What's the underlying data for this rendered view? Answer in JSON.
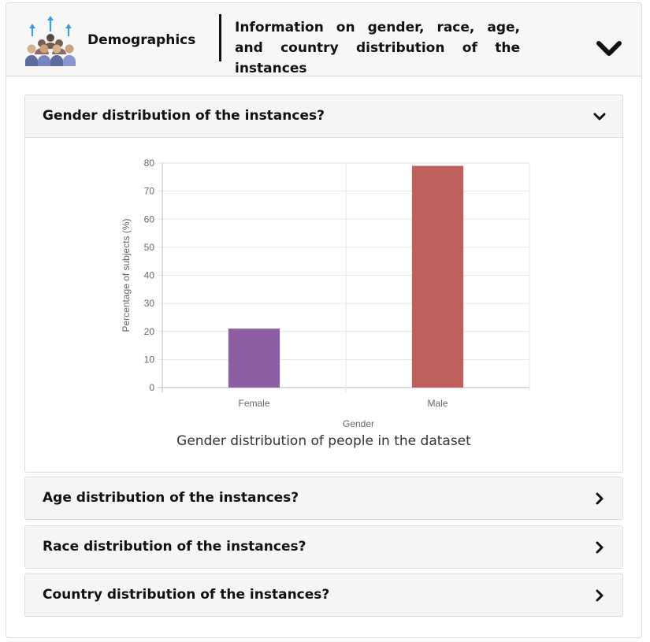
{
  "header": {
    "title": "Demographics",
    "description": "Information on gender, race, age, and country distribution of the instances",
    "icon": "people-group-icon",
    "toggle_icon": "chevron-down-icon"
  },
  "sections": [
    {
      "title": "Gender distribution of the instances?",
      "state": "expanded",
      "icon": "chevron-down-icon"
    },
    {
      "title": "Age distribution of the instances?",
      "state": "collapsed",
      "icon": "chevron-right-icon"
    },
    {
      "title": "Race distribution of the instances?",
      "state": "collapsed",
      "icon": "chevron-right-icon"
    },
    {
      "title": "Country distribution of the instances?",
      "state": "collapsed",
      "icon": "chevron-right-icon"
    }
  ],
  "chart_data": {
    "type": "bar",
    "categories": [
      "Female",
      "Male"
    ],
    "values": [
      21,
      79
    ],
    "colors": [
      "#8e5ea2",
      "#c0605a"
    ],
    "title": "Gender distribution of people in the dataset",
    "xlabel": "Gender",
    "ylabel": "Percentage of subjects (%)",
    "ylim": [
      0,
      80
    ],
    "yticks": [
      0,
      10,
      20,
      30,
      40,
      50,
      60,
      70,
      80
    ],
    "grid": true,
    "legend": "none"
  }
}
